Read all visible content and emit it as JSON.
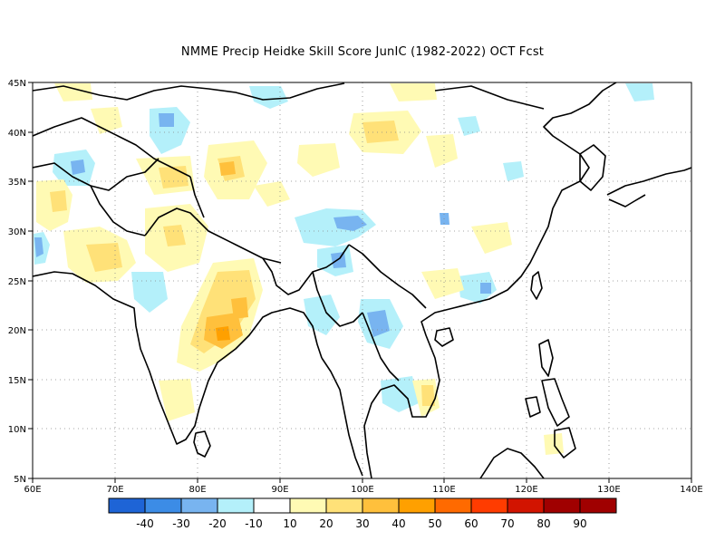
{
  "title": "NMME Precip Heidke Skill Score JunIC (1982-2022) OCT Fcst",
  "map": {
    "lon_range": [
      60,
      140
    ],
    "lat_range": [
      5,
      45
    ],
    "lon_ticks": [
      "60E",
      "70E",
      "80E",
      "90E",
      "100E",
      "110E",
      "120E",
      "130E",
      "140E"
    ],
    "lat_ticks": [
      "45N",
      "40N",
      "35N",
      "30N",
      "25N",
      "20N",
      "15N",
      "10N",
      "5N"
    ],
    "grid": true,
    "grid_style": "dotted"
  },
  "colorbar": {
    "labels": [
      "-40",
      "-30",
      "-20",
      "-10",
      "10",
      "20",
      "30",
      "40",
      "50",
      "60",
      "70",
      "80",
      "90"
    ],
    "colors": [
      "#1e64d6",
      "#3c8ce6",
      "#78b4f0",
      "#b4f0fa",
      "#ffffff",
      "#fffab4",
      "#ffe178",
      "#ffc03c",
      "#ffa000",
      "#ff6a00",
      "#ff3c00",
      "#d21400",
      "#a00000"
    ]
  },
  "colors": {
    "coast": "#000000",
    "frame": "#000000",
    "grid": "#888888"
  }
}
